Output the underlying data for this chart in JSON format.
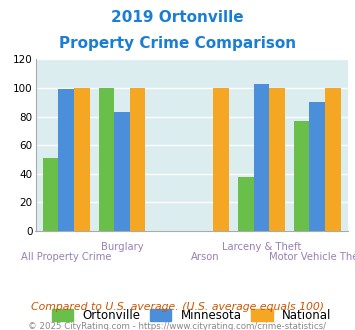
{
  "title_line1": "2019 Ortonville",
  "title_line2": "Property Crime Comparison",
  "series": {
    "Ortonville": [
      51,
      100,
      0,
      38,
      77
    ],
    "Minnesota": [
      99,
      83,
      0,
      103,
      90
    ],
    "National": [
      100,
      100,
      100,
      100,
      100
    ]
  },
  "colors": {
    "Ortonville": "#6abf4b",
    "Minnesota": "#4b8fdb",
    "National": "#f5a623"
  },
  "group_positions": [
    0,
    1,
    2.5,
    3.5,
    4.5
  ],
  "cat_top": [
    "",
    "Burglary",
    "",
    "Larceny & Theft",
    ""
  ],
  "cat_bottom": [
    "All Property Crime",
    "",
    "Arson",
    "",
    "Motor Vehicle Theft"
  ],
  "ylim": [
    0,
    120
  ],
  "yticks": [
    0,
    20,
    40,
    60,
    80,
    100,
    120
  ],
  "bg_color": "#dcedf0",
  "title_color": "#1a7fd4",
  "xlabel_color": "#9b7fb6",
  "footnote1": "Compared to U.S. average. (U.S. average equals 100)",
  "footnote2": "© 2025 CityRating.com - https://www.cityrating.com/crime-statistics/",
  "footnote1_color": "#cc5500",
  "footnote2_color": "#888888",
  "bar_width": 0.28
}
